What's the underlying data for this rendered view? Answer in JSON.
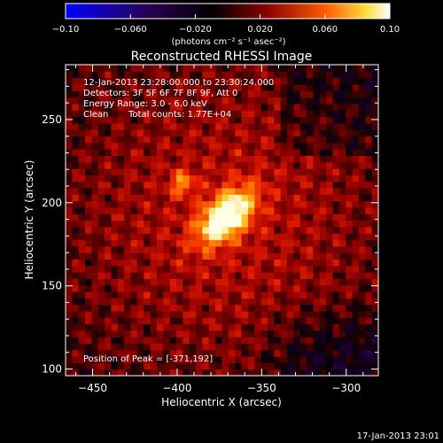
{
  "chart_data": {
    "type": "heatmap",
    "title": "Reconstructed RHESSI Image",
    "xlabel": "Heliocentric X (arcsec)",
    "ylabel": "Heliocentric Y (arcsec)",
    "xlim": [
      -466,
      -281
    ],
    "ylim": [
      96,
      283
    ],
    "xticks": [
      -450,
      -400,
      -350,
      -300
    ],
    "xtick_labels": [
      "−450",
      "−400",
      "−350",
      "−300"
    ],
    "yticks": [
      100,
      150,
      200,
      250
    ],
    "ytick_labels": [
      "100",
      "150",
      "200",
      "250"
    ],
    "colorbar": {
      "range": [
        -0.1,
        0.1
      ],
      "ticks": [
        -0.1,
        -0.06,
        -0.02,
        0.02,
        0.06,
        0.1
      ],
      "tick_labels": [
        "−0.10",
        "−0.060",
        "−0.020",
        "0.020",
        "0.060",
        "0.10"
      ],
      "unit_label": "(photons cm⁻² s⁻¹ asec⁻²)",
      "colors": [
        "#0000ff",
        "#2a0055",
        "#000000",
        "#8a0000",
        "#ff5a00",
        "#ffe040",
        "#ffffff"
      ]
    },
    "peak": {
      "x": -371,
      "y": 192,
      "value": 0.1
    },
    "secondary_peak": {
      "x": -397,
      "y": 212
    },
    "annotations": {
      "time_range": "12-Jan-2013 23:28:00.000 to 23:30:24.000",
      "detectors": "Detectors: 3F 5F 6F 7F 8F 9F, Att 0",
      "energy": "Energy Range: 3.0 - 6.0 keV",
      "clean": "Clean",
      "counts": "Total counts: 1.77E+04",
      "peak_position": "Position of Peak = [-371,192]"
    }
  },
  "footer": {
    "date": "17-Jan-2013 23:01"
  }
}
